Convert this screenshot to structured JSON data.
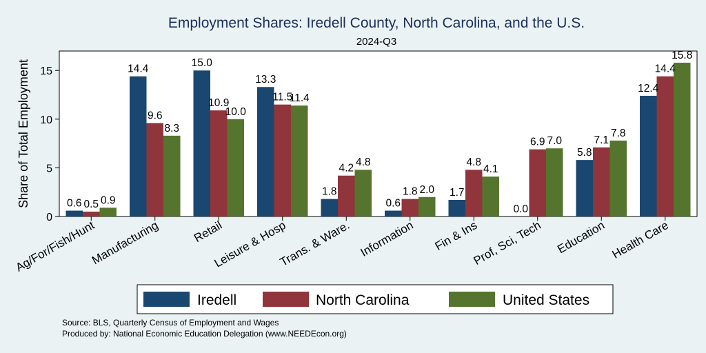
{
  "chart_data": {
    "type": "bar",
    "title": "Employment Shares: Iredell County, North Carolina, and the U.S.",
    "subtitle": "2024-Q3",
    "xlabel": "",
    "ylabel": "Share of Total Employment",
    "ylim": [
      0,
      17
    ],
    "yticks": [
      0,
      5,
      10,
      15
    ],
    "grid": false,
    "categories": [
      "Ag/For/Fish/Hunt",
      "Manufacturing",
      "Retail",
      "Leisure & Hosp",
      "Trans. & Ware.",
      "Information",
      "Fin & Ins",
      "Prof, Sci, Tech",
      "Education",
      "Health Care"
    ],
    "series": [
      {
        "name": "Iredell",
        "color": "#1a476f",
        "values": [
          0.6,
          14.4,
          15.0,
          13.3,
          1.8,
          0.6,
          1.7,
          0.0,
          5.8,
          12.4
        ],
        "labels": [
          "0.6",
          "14.4",
          "15.0",
          "13.3",
          "1.8",
          "0.6",
          "1.7",
          "0.0",
          "5.8",
          "12.4"
        ]
      },
      {
        "name": "North Carolina",
        "color": "#90353b",
        "values": [
          0.5,
          9.6,
          10.9,
          11.5,
          4.2,
          1.8,
          4.8,
          6.9,
          7.1,
          14.4
        ],
        "labels": [
          "0.5",
          "9.6",
          "10.9",
          "11.5",
          "4.2",
          "1.8",
          "4.8",
          "6.9",
          "7.1",
          "14.4"
        ]
      },
      {
        "name": "United States",
        "color": "#55752f",
        "values": [
          0.9,
          8.3,
          10.0,
          11.4,
          4.8,
          2.0,
          4.1,
          7.0,
          7.8,
          15.8
        ],
        "labels": [
          "0.9",
          "8.3",
          "10.0",
          "11.4",
          "4.8",
          "2.0",
          "4.1",
          "7.0",
          "7.8",
          "15.8"
        ]
      }
    ],
    "legend_position": "bottom",
    "notes": [
      "Source: BLS, Quarterly Census of Employment and Wages",
      "Produced by: National Economic Education Delegation (www.NEEDEcon.org)"
    ]
  }
}
